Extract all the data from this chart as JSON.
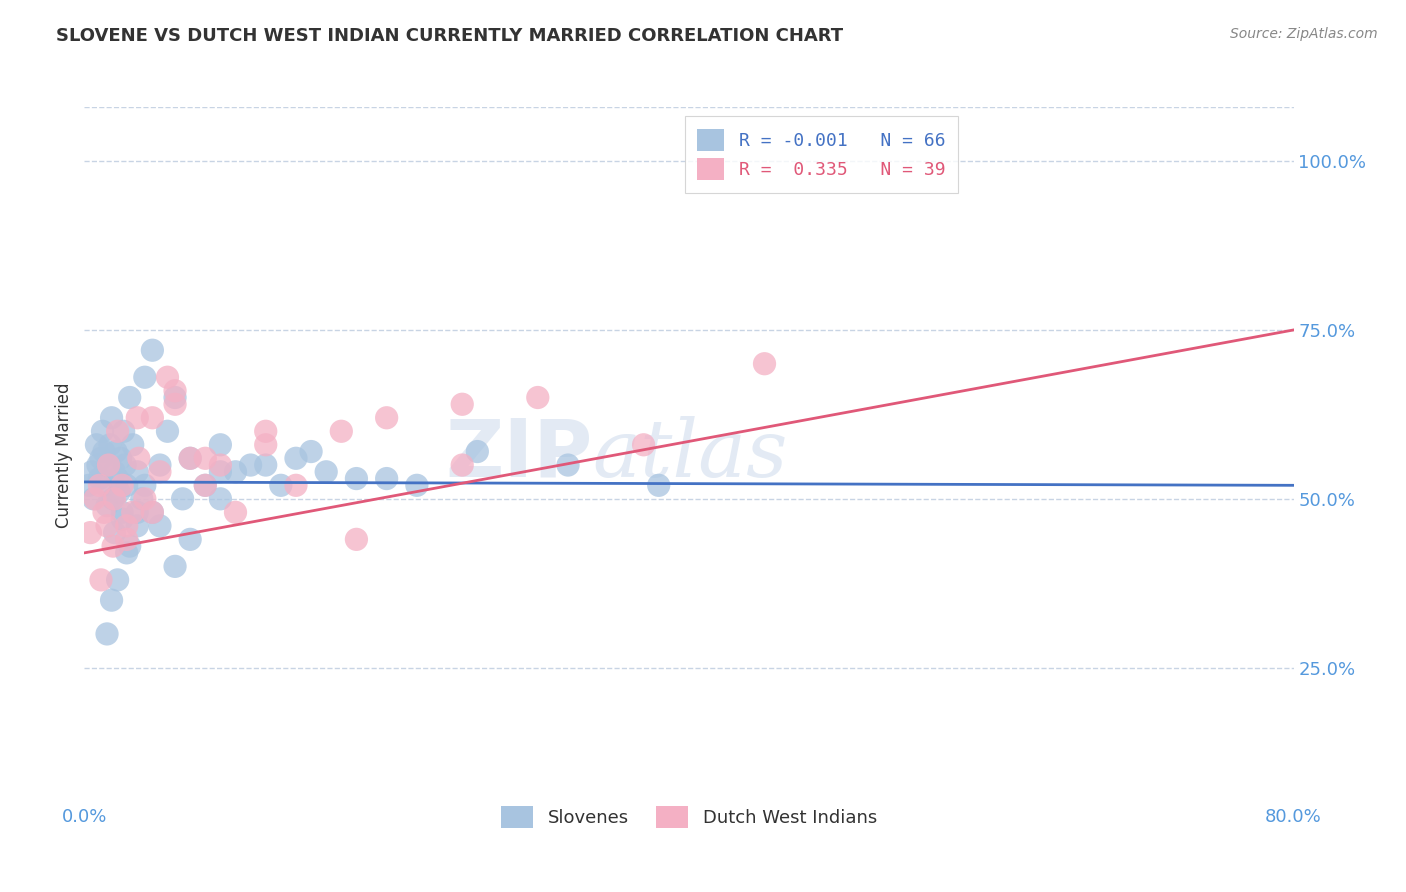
{
  "title": "SLOVENE VS DUTCH WEST INDIAN CURRENTLY MARRIED CORRELATION CHART",
  "source": "Source: ZipAtlas.com",
  "xlim": [
    0.0,
    80.0
  ],
  "ylim": [
    5.0,
    108.0
  ],
  "yticks": [
    25,
    50,
    75,
    100
  ],
  "ytick_labels": [
    "25.0%",
    "50.0%",
    "75.0%",
    "100.0%"
  ],
  "xticks": [
    0.0,
    80.0
  ],
  "xtick_labels": [
    "0.0%",
    "80.0%"
  ],
  "legend_labels": [
    "Slovenes",
    "Dutch West Indians"
  ],
  "legend_r": [
    "-0.001",
    " 0.335"
  ],
  "legend_n": [
    "66",
    "39"
  ],
  "blue_color": "#a8c4e0",
  "pink_color": "#f4b0c4",
  "blue_line_color": "#4472c4",
  "pink_line_color": "#e05878",
  "tick_color": "#5599dd",
  "grid_color": "#c8d4e4",
  "background_color": "#ffffff",
  "ylabel": "Currently Married",
  "slovene_x": [
    0.3,
    0.5,
    0.6,
    0.8,
    0.9,
    1.0,
    1.1,
    1.2,
    1.3,
    1.4,
    1.5,
    1.6,
    1.7,
    1.8,
    1.9,
    2.0,
    2.1,
    2.2,
    2.3,
    2.4,
    2.5,
    2.6,
    2.7,
    2.8,
    3.0,
    3.2,
    3.5,
    3.8,
    4.0,
    4.5,
    5.0,
    5.5,
    6.0,
    7.0,
    8.0,
    9.0,
    10.0,
    11.0,
    13.0,
    15.0,
    18.0,
    22.0,
    2.0,
    2.5,
    3.0,
    3.5,
    4.0,
    5.0,
    6.0,
    7.0,
    9.0,
    12.0,
    16.0,
    20.0,
    26.0,
    32.0,
    38.0,
    1.5,
    1.8,
    2.2,
    2.8,
    3.5,
    4.5,
    6.5,
    9.0,
    14.0
  ],
  "slovene_y": [
    52,
    54,
    50,
    58,
    55,
    53,
    56,
    60,
    57,
    52,
    49,
    55,
    58,
    62,
    50,
    54,
    57,
    53,
    51,
    56,
    48,
    60,
    55,
    52,
    65,
    58,
    54,
    50,
    68,
    72,
    55,
    60,
    65,
    56,
    52,
    58,
    54,
    55,
    52,
    57,
    53,
    52,
    45,
    47,
    43,
    48,
    52,
    46,
    40,
    44,
    50,
    55,
    54,
    53,
    57,
    55,
    52,
    30,
    35,
    38,
    42,
    46,
    48,
    50,
    54,
    56
  ],
  "dutch_x": [
    0.4,
    0.7,
    1.0,
    1.3,
    1.6,
    1.9,
    2.2,
    2.5,
    2.8,
    3.2,
    3.6,
    4.0,
    4.5,
    5.0,
    5.5,
    6.0,
    7.0,
    8.0,
    9.0,
    10.0,
    12.0,
    14.0,
    17.0,
    20.0,
    25.0,
    30.0,
    37.0,
    45.0,
    1.1,
    1.5,
    2.0,
    2.8,
    3.5,
    4.5,
    6.0,
    8.0,
    12.0,
    18.0,
    25.0
  ],
  "dutch_y": [
    45,
    50,
    52,
    48,
    55,
    43,
    60,
    52,
    46,
    48,
    56,
    50,
    62,
    54,
    68,
    64,
    56,
    52,
    55,
    48,
    58,
    52,
    60,
    62,
    55,
    65,
    58,
    70,
    38,
    46,
    50,
    44,
    62,
    48,
    66,
    56,
    60,
    44,
    64
  ],
  "blue_trend_start": 52.5,
  "blue_trend_end": 52.0,
  "pink_trend_start": 42.0,
  "pink_trend_end": 75.0
}
